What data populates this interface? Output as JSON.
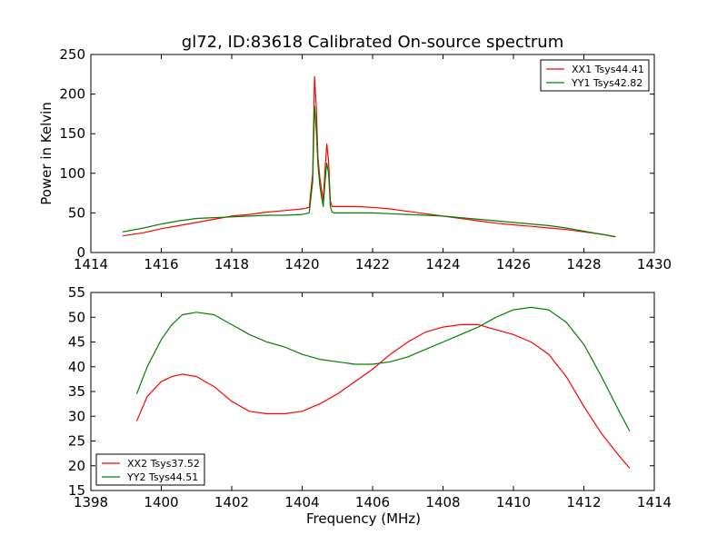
{
  "title": "gl72, ID:83618 Calibrated On-source spectrum",
  "colors": {
    "red": "#ff0000",
    "green": "#008000",
    "axis": "#000000"
  },
  "chart_data": [
    {
      "type": "line",
      "title": "gl72, ID:83618 Calibrated On-source spectrum",
      "xlabel": "",
      "ylabel": "Power in Kelvin",
      "xlim": [
        1414,
        1430
      ],
      "ylim": [
        0,
        250
      ],
      "xticks": [
        1414,
        1416,
        1418,
        1420,
        1422,
        1424,
        1426,
        1428,
        1430
      ],
      "yticks": [
        0,
        50,
        100,
        150,
        200,
        250
      ],
      "grid": false,
      "legend": "top-right",
      "series": [
        {
          "name": "XX1 Tsys44.41",
          "color": "#ff0000",
          "x": [
            1414.9,
            1415.5,
            1416.0,
            1416.5,
            1417.0,
            1417.5,
            1418.0,
            1418.5,
            1419.0,
            1419.5,
            1420.0,
            1420.2,
            1420.3,
            1420.35,
            1420.4,
            1420.45,
            1420.5,
            1420.55,
            1420.6,
            1420.65,
            1420.7,
            1420.75,
            1420.8,
            1420.85,
            1420.9,
            1421.0,
            1421.5,
            1422.0,
            1422.5,
            1423.0,
            1423.5,
            1424.0,
            1424.5,
            1425.0,
            1425.5,
            1426.0,
            1426.5,
            1427.0,
            1427.5,
            1428.0,
            1428.5,
            1428.9
          ],
          "y": [
            21,
            25,
            30,
            34,
            38,
            42,
            46,
            48,
            51,
            53,
            55,
            57,
            100,
            222,
            185,
            120,
            95,
            80,
            66,
            105,
            137,
            115,
            65,
            58,
            58,
            58,
            58,
            57,
            55,
            52,
            49,
            46,
            43,
            40,
            37,
            35,
            33,
            31,
            29,
            26,
            23,
            20
          ]
        },
        {
          "name": "YY1 Tsys42.82",
          "color": "#008000",
          "x": [
            1414.9,
            1415.5,
            1416.0,
            1416.5,
            1417.0,
            1417.5,
            1418.0,
            1418.5,
            1419.0,
            1419.5,
            1420.0,
            1420.2,
            1420.3,
            1420.35,
            1420.4,
            1420.45,
            1420.5,
            1420.55,
            1420.6,
            1420.65,
            1420.7,
            1420.75,
            1420.8,
            1420.85,
            1420.9,
            1421.0,
            1421.5,
            1422.0,
            1422.5,
            1423.0,
            1423.5,
            1424.0,
            1424.5,
            1425.0,
            1425.5,
            1426.0,
            1426.5,
            1427.0,
            1427.5,
            1428.0,
            1428.5,
            1428.9
          ],
          "y": [
            26,
            31,
            36,
            40,
            43,
            44,
            45,
            46,
            47,
            47,
            48,
            50,
            90,
            185,
            155,
            110,
            85,
            70,
            58,
            90,
            113,
            100,
            58,
            51,
            50,
            50,
            50,
            50,
            49,
            48,
            47,
            46,
            44,
            42,
            40,
            38,
            36,
            34,
            31,
            27,
            23,
            20
          ]
        }
      ]
    },
    {
      "type": "line",
      "title": "",
      "xlabel": "Frequency (MHz)",
      "ylabel": "",
      "xlim": [
        1398,
        1414
      ],
      "ylim": [
        15,
        55
      ],
      "xticks": [
        1398,
        1400,
        1402,
        1404,
        1406,
        1408,
        1410,
        1412,
        1414
      ],
      "yticks": [
        15,
        20,
        25,
        30,
        35,
        40,
        45,
        50,
        55
      ],
      "grid": false,
      "legend": "bottom-left",
      "series": [
        {
          "name": "XX2 Tsys37.52",
          "color": "#ff0000",
          "x": [
            1399.3,
            1399.6,
            1400.0,
            1400.3,
            1400.6,
            1401.0,
            1401.5,
            1402.0,
            1402.5,
            1403.0,
            1403.5,
            1404.0,
            1404.5,
            1405.0,
            1405.5,
            1406.0,
            1406.5,
            1407.0,
            1407.5,
            1408.0,
            1408.5,
            1409.0,
            1409.5,
            1410.0,
            1410.5,
            1411.0,
            1411.5,
            1412.0,
            1412.5,
            1413.0,
            1413.3
          ],
          "y": [
            29,
            34,
            37,
            38,
            38.5,
            38,
            36,
            33,
            31,
            30.5,
            30.5,
            31,
            32.5,
            34.5,
            37,
            39.5,
            42.5,
            45,
            47,
            48,
            48.5,
            48.5,
            47.5,
            46.5,
            45,
            42.5,
            38,
            32,
            26.5,
            22,
            19.5
          ]
        },
        {
          "name": "YY2 Tsys44.51",
          "color": "#008000",
          "x": [
            1399.3,
            1399.6,
            1400.0,
            1400.3,
            1400.6,
            1401.0,
            1401.5,
            1402.0,
            1402.5,
            1403.0,
            1403.5,
            1404.0,
            1404.5,
            1405.0,
            1405.5,
            1406.0,
            1406.5,
            1407.0,
            1407.5,
            1408.0,
            1408.5,
            1409.0,
            1409.5,
            1410.0,
            1410.5,
            1411.0,
            1411.5,
            1412.0,
            1412.5,
            1413.0,
            1413.3
          ],
          "y": [
            34.5,
            40,
            45.5,
            48.5,
            50.5,
            51,
            50.5,
            48.5,
            46.5,
            45,
            44,
            42.5,
            41.5,
            41,
            40.5,
            40.5,
            41,
            42,
            43.5,
            45,
            46.5,
            48,
            50,
            51.5,
            52,
            51.5,
            49,
            44.5,
            38,
            31,
            27
          ]
        }
      ]
    }
  ]
}
